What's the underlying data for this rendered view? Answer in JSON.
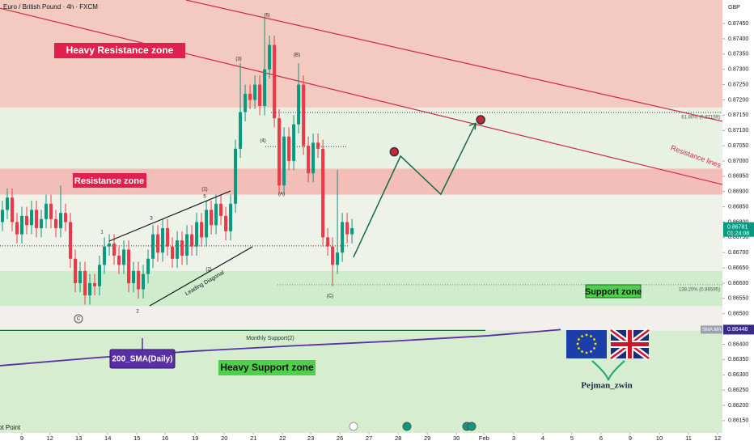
{
  "chart_data": {
    "type": "candlestick",
    "title": "Euro / British Pound · 4h · FXCM",
    "currency": "GBP",
    "candles": [
      [
        0.868,
        0.8687,
        0.8677,
        0.8684
      ],
      [
        0.8684,
        0.8691,
        0.8681,
        0.8688
      ],
      [
        0.8688,
        0.8691,
        0.8677,
        0.868
      ],
      [
        0.868,
        0.8683,
        0.8673,
        0.8676
      ],
      [
        0.8676,
        0.8685,
        0.8673,
        0.8682
      ],
      [
        0.8682,
        0.8685,
        0.8676,
        0.8679
      ],
      [
        0.8679,
        0.8687,
        0.8676,
        0.8684
      ],
      [
        0.8684,
        0.8687,
        0.8675,
        0.8678
      ],
      [
        0.8678,
        0.8684,
        0.8675,
        0.8681
      ],
      [
        0.8681,
        0.8689,
        0.8678,
        0.8686
      ],
      [
        0.8686,
        0.8689,
        0.8678,
        0.8681
      ],
      [
        0.8681,
        0.8684,
        0.8675,
        0.8678
      ],
      [
        0.8678,
        0.8692,
        0.8675,
        0.8683
      ],
      [
        0.8683,
        0.8686,
        0.8677,
        0.868
      ],
      [
        0.868,
        0.8683,
        0.8665,
        0.8668
      ],
      [
        0.8668,
        0.8671,
        0.8657,
        0.866
      ],
      [
        0.866,
        0.8667,
        0.8657,
        0.8664
      ],
      [
        0.8664,
        0.8667,
        0.8653,
        0.8656
      ],
      [
        0.8656,
        0.8663,
        0.8653,
        0.866
      ],
      [
        0.866,
        0.8663,
        0.8656,
        0.8659
      ],
      [
        0.8659,
        0.8669,
        0.8656,
        0.8666
      ],
      [
        0.8666,
        0.8675,
        0.8663,
        0.8672
      ],
      [
        0.8672,
        0.8676,
        0.8669,
        0.8673
      ],
      [
        0.8673,
        0.8676,
        0.8666,
        0.8669
      ],
      [
        0.8669,
        0.8672,
        0.8663,
        0.8666
      ],
      [
        0.8666,
        0.8674,
        0.8663,
        0.8671
      ],
      [
        0.8671,
        0.8674,
        0.8657,
        0.866
      ],
      [
        0.866,
        0.8667,
        0.8657,
        0.8664
      ],
      [
        0.8664,
        0.8667,
        0.8655,
        0.8658
      ],
      [
        0.8658,
        0.8666,
        0.8655,
        0.8663
      ],
      [
        0.8663,
        0.8671,
        0.866,
        0.8668
      ],
      [
        0.8668,
        0.8679,
        0.8665,
        0.8676
      ],
      [
        0.8676,
        0.8679,
        0.8667,
        0.867
      ],
      [
        0.867,
        0.8681,
        0.8667,
        0.8678
      ],
      [
        0.8678,
        0.8681,
        0.8669,
        0.8672
      ],
      [
        0.8672,
        0.8675,
        0.8665,
        0.8668
      ],
      [
        0.8668,
        0.8677,
        0.8665,
        0.8674
      ],
      [
        0.8674,
        0.8677,
        0.8666,
        0.8669
      ],
      [
        0.8669,
        0.8679,
        0.8666,
        0.8676
      ],
      [
        0.8676,
        0.8679,
        0.8669,
        0.8672
      ],
      [
        0.8672,
        0.8683,
        0.8669,
        0.868
      ],
      [
        0.868,
        0.8683,
        0.8672,
        0.8675
      ],
      [
        0.8675,
        0.8687,
        0.8672,
        0.8684
      ],
      [
        0.8684,
        0.8687,
        0.8676,
        0.8679
      ],
      [
        0.8679,
        0.8689,
        0.8676,
        0.8686
      ],
      [
        0.8686,
        0.8689,
        0.8679,
        0.8682
      ],
      [
        0.8682,
        0.8685,
        0.8674,
        0.8677
      ],
      [
        0.8677,
        0.8689,
        0.8674,
        0.8686
      ],
      [
        0.8686,
        0.8707,
        0.8683,
        0.8704
      ],
      [
        0.8704,
        0.8732,
        0.8701,
        0.8716
      ],
      [
        0.8716,
        0.8725,
        0.8713,
        0.8722
      ],
      [
        0.8722,
        0.8725,
        0.8717,
        0.872
      ],
      [
        0.872,
        0.8728,
        0.8717,
        0.8725
      ],
      [
        0.8725,
        0.8728,
        0.8715,
        0.8718
      ],
      [
        0.8718,
        0.8747,
        0.8715,
        0.873
      ],
      [
        0.873,
        0.8741,
        0.8727,
        0.8738
      ],
      [
        0.8738,
        0.8741,
        0.8711,
        0.8714
      ],
      [
        0.8714,
        0.8717,
        0.8689,
        0.8692
      ],
      [
        0.8692,
        0.8711,
        0.8689,
        0.8708
      ],
      [
        0.8708,
        0.8711,
        0.8697,
        0.87
      ],
      [
        0.87,
        0.8715,
        0.8697,
        0.8712
      ],
      [
        0.8712,
        0.8732,
        0.8709,
        0.8725
      ],
      [
        0.8725,
        0.8728,
        0.8702,
        0.8705
      ],
      [
        0.8705,
        0.8708,
        0.8693,
        0.8696
      ],
      [
        0.8696,
        0.8709,
        0.8693,
        0.8706
      ],
      [
        0.8706,
        0.8709,
        0.8701,
        0.8704
      ],
      [
        0.8704,
        0.8707,
        0.8672,
        0.8675
      ],
      [
        0.8675,
        0.8678,
        0.8669,
        0.8672
      ],
      [
        0.8672,
        0.8675,
        0.8659,
        0.8666
      ],
      [
        0.8666,
        0.8697,
        0.8663,
        0.867
      ],
      [
        0.867,
        0.8683,
        0.8667,
        0.868
      ],
      [
        0.868,
        0.8683,
        0.8673,
        0.8676
      ],
      [
        0.8676,
        0.8681,
        0.8673,
        0.8678
      ]
    ],
    "colors": {
      "up": "#089981",
      "down": "#f23645"
    },
    "xlim": [
      -0.5,
      148.3
    ],
    "xticks": [
      {
        "value": 4,
        "label": "9"
      },
      {
        "value": 9.8,
        "label": "12"
      },
      {
        "value": 15.7,
        "label": "13"
      },
      {
        "value": 21.7,
        "label": "14"
      },
      {
        "value": 27.7,
        "label": "15"
      },
      {
        "value": 33.5,
        "label": "16"
      },
      {
        "value": 39.7,
        "label": "19"
      },
      {
        "value": 45.7,
        "label": "20"
      },
      {
        "value": 51.7,
        "label": "21"
      },
      {
        "value": 57.7,
        "label": "22"
      },
      {
        "value": 63.5,
        "label": "23"
      },
      {
        "value": 69.5,
        "label": "26"
      },
      {
        "value": 75.5,
        "label": "27"
      },
      {
        "value": 81.5,
        "label": "28"
      },
      {
        "value": 87.5,
        "label": "29"
      },
      {
        "value": 93.5,
        "label": "30"
      },
      {
        "value": 99.2,
        "label": "Feb"
      },
      {
        "value": 105.3,
        "label": "3"
      },
      {
        "value": 111.3,
        "label": "4"
      },
      {
        "value": 117.3,
        "label": "5"
      },
      {
        "value": 123.3,
        "label": "6"
      },
      {
        "value": 129.3,
        "label": "9"
      },
      {
        "value": 135.3,
        "label": "10"
      },
      {
        "value": 141.3,
        "label": "11"
      },
      {
        "value": 147.3,
        "label": "12"
      }
    ],
    "ylim": [
      0.8611,
      0.87527
    ],
    "yticks": [
      {
        "value": 0.8615,
        "label": "0.86150"
      },
      {
        "value": 0.862,
        "label": "0.86200"
      },
      {
        "value": 0.8625,
        "label": "0.86250"
      },
      {
        "value": 0.863,
        "label": "0.86300"
      },
      {
        "value": 0.8635,
        "label": "0.86350"
      },
      {
        "value": 0.864,
        "label": "0.86400"
      },
      {
        "value": 0.865,
        "label": "0.86500"
      },
      {
        "value": 0.8655,
        "label": "0.86550"
      },
      {
        "value": 0.866,
        "label": "0.86600"
      },
      {
        "value": 0.8665,
        "label": "0.86650"
      },
      {
        "value": 0.867,
        "label": "0.86700"
      },
      {
        "value": 0.8675,
        "label": "0.86750"
      },
      {
        "value": 0.868,
        "label": "0.86800"
      },
      {
        "value": 0.8685,
        "label": "0.86850"
      },
      {
        "value": 0.869,
        "label": "0.86900"
      },
      {
        "value": 0.8695,
        "label": "0.86950"
      },
      {
        "value": 0.87,
        "label": "0.87000"
      },
      {
        "value": 0.8705,
        "label": "0.87050"
      },
      {
        "value": 0.871,
        "label": "0.87100"
      },
      {
        "value": 0.8715,
        "label": "0.87150"
      },
      {
        "value": 0.872,
        "label": "0.87200"
      },
      {
        "value": 0.8725,
        "label": "0.87250"
      },
      {
        "value": 0.873,
        "label": "0.87300"
      },
      {
        "value": 0.8735,
        "label": "0.87350"
      },
      {
        "value": 0.874,
        "label": "0.87400"
      },
      {
        "value": 0.8745,
        "label": "0.87450"
      }
    ],
    "last_price": 0.86781,
    "countdown": "01:24:08",
    "zones": [
      {
        "name": "Heavy Resistance zone",
        "from": 0.87175,
        "to": 0.87527,
        "color": "#f2cabf"
      },
      {
        "from": 0.86975,
        "to": 0.87175,
        "color": "#e8f2e4"
      },
      {
        "name": "Resistance zone",
        "from": 0.8689,
        "to": 0.86975,
        "color": "#f3bdb8"
      },
      {
        "from": 0.8664,
        "to": 0.8689,
        "color": "#eef2e8"
      },
      {
        "name": "Support zone",
        "from": 0.86525,
        "to": 0.8664,
        "color": "#cfedcc"
      },
      {
        "name": "Heavy Support zone",
        "from": 0.8611,
        "to": 0.86445,
        "color": "#d6eecf"
      }
    ],
    "resistance_lines": {
      "name": "Resistance lines",
      "color": "#d0284a",
      "lines": [
        {
          "x": [
            37.8,
            148.3
          ],
          "values": [
            0.87527,
            0.8713
          ]
        },
        {
          "x": [
            -0.5,
            148.3
          ],
          "values": [
            0.875,
            0.86923
          ]
        }
      ]
    },
    "fib": [
      {
        "label": "61.80% (0.87159)",
        "value": 0.87159
      },
      {
        "label": "138.20% (0.86595)",
        "value": 0.86595
      }
    ],
    "levels": [
      0.87047,
      0.86722
    ],
    "sma": {
      "name": "200_SMA(Daily)",
      "legend": "SMA:MA",
      "last": 0.86448,
      "color": "#5a2ea6",
      "x": [
        -0.5,
        20,
        40,
        60,
        80,
        100,
        115
      ],
      "values": [
        0.8633,
        0.86357,
        0.86378,
        0.86395,
        0.8641,
        0.86428,
        0.86448
      ]
    },
    "monthly_support": {
      "name": "Monthly Support(2)",
      "value": 0.86448
    },
    "projection": {
      "x": [
        72.3,
        82,
        90.3,
        97.5
      ],
      "values": [
        0.86685,
        0.87016,
        0.86891,
        0.87124
      ]
    },
    "targets": {
      "x": [
        80.7,
        98.5
      ],
      "values": [
        0.8703,
        0.87135
      ]
    },
    "waves": [
      "(5)",
      "(3)",
      "(4)",
      "(B)",
      "(A)",
      "(C)",
      "(1)",
      "(2)",
      "5",
      "3",
      "1",
      "2",
      "C"
    ],
    "diagonal": "Leading Diagonal",
    "author": "Pejman_zwin",
    "pivot": "ot Point"
  }
}
